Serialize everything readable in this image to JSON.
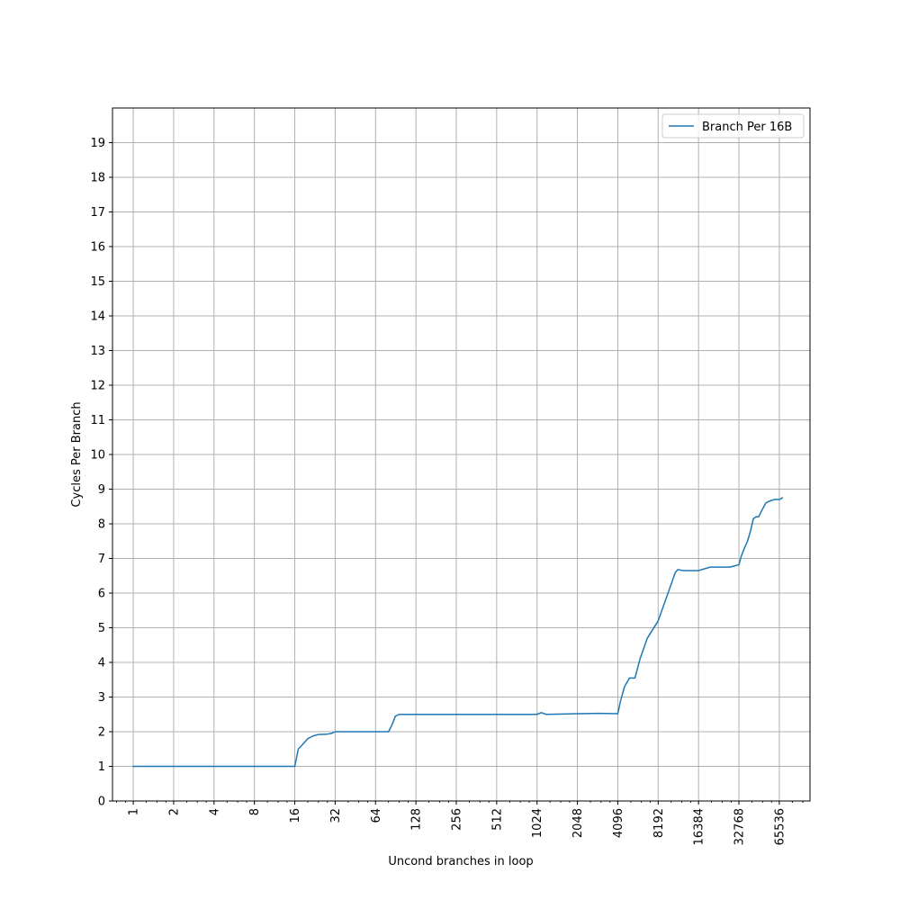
{
  "chart_data": {
    "type": "line",
    "title": "",
    "xlabel": "Uncond branches in loop",
    "ylabel": "Cycles Per Branch",
    "x_scale": "log2",
    "xlim": [
      0.7,
      111000
    ],
    "ylim": [
      0,
      20
    ],
    "x_ticks": [
      1,
      2,
      4,
      8,
      16,
      32,
      64,
      128,
      256,
      512,
      1024,
      2048,
      4096,
      8192,
      16384,
      32768,
      65536
    ],
    "x_tick_labels": [
      "1",
      "2",
      "4",
      "8",
      "16",
      "32",
      "64",
      "128",
      "256",
      "512",
      "1024",
      "2048",
      "4096",
      "8192",
      "16384",
      "32768",
      "65536"
    ],
    "y_ticks": [
      0,
      1,
      2,
      3,
      4,
      5,
      6,
      7,
      8,
      9,
      10,
      11,
      12,
      13,
      14,
      15,
      16,
      17,
      18,
      19
    ],
    "y_tick_labels": [
      "0",
      "1",
      "2",
      "3",
      "4",
      "5",
      "6",
      "7",
      "8",
      "9",
      "10",
      "11",
      "12",
      "13",
      "14",
      "15",
      "16",
      "17",
      "18",
      "19"
    ],
    "grid": true,
    "legend_position": "top-right",
    "color": "#1f77b4",
    "series": [
      {
        "name": "Branch Per 16B",
        "x": [
          1,
          2,
          4,
          8,
          16,
          17,
          18,
          20,
          22,
          24,
          28,
          30,
          32,
          36,
          48,
          64,
          80,
          85,
          90,
          96,
          112,
          128,
          256,
          512,
          1024,
          1100,
          1200,
          2048,
          3000,
          4096,
          4300,
          4600,
          5000,
          5300,
          5500,
          6000,
          6800,
          8192,
          9500,
          11000,
          11500,
          12500,
          16384,
          20000,
          22000,
          28000,
          30000,
          32768,
          34000,
          36000,
          38000,
          40000,
          42000,
          44000,
          46000,
          48000,
          52000,
          55000,
          60000,
          65536,
          69000
        ],
        "y": [
          1,
          1,
          1,
          1,
          1,
          1.5,
          1.6,
          1.8,
          1.88,
          1.92,
          1.93,
          1.95,
          2,
          2,
          2,
          2,
          2,
          2.2,
          2.45,
          2.5,
          2.5,
          2.5,
          2.5,
          2.5,
          2.5,
          2.55,
          2.5,
          2.52,
          2.53,
          2.52,
          2.9,
          3.3,
          3.55,
          3.55,
          3.55,
          4.1,
          4.7,
          5.2,
          5.9,
          6.6,
          6.68,
          6.65,
          6.65,
          6.75,
          6.75,
          6.75,
          6.78,
          6.82,
          7.05,
          7.3,
          7.5,
          7.8,
          8.15,
          8.2,
          8.2,
          8.35,
          8.6,
          8.65,
          8.7,
          8.7,
          8.75
        ]
      }
    ]
  }
}
